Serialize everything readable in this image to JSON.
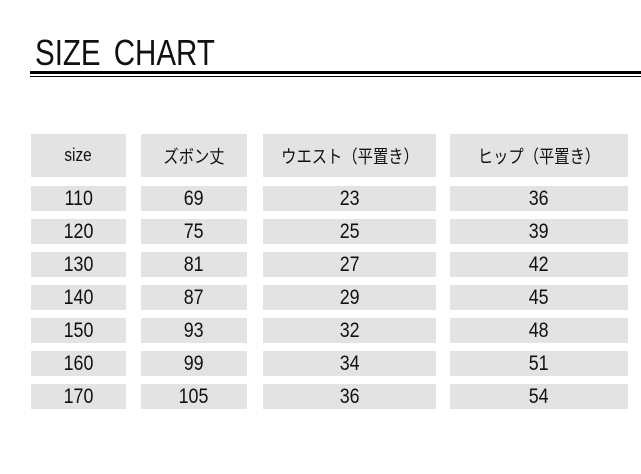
{
  "title": "SIZE CHART",
  "headers": [
    "size",
    "ズボン丈",
    "ウエスト（平置き）",
    "ヒップ（平置き）"
  ],
  "rows": [
    [
      "110",
      "69",
      "23",
      "36"
    ],
    [
      "120",
      "75",
      "25",
      "39"
    ],
    [
      "130",
      "81",
      "27",
      "42"
    ],
    [
      "140",
      "87",
      "29",
      "45"
    ],
    [
      "150",
      "93",
      "32",
      "48"
    ],
    [
      "160",
      "99",
      "34",
      "51"
    ],
    [
      "170",
      "105",
      "36",
      "54"
    ]
  ]
}
